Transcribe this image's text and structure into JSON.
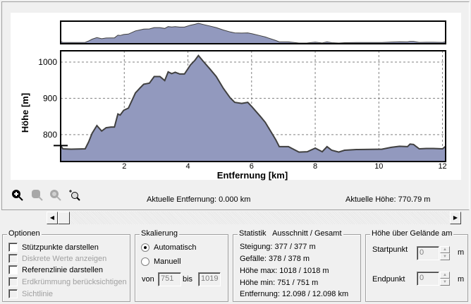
{
  "chart_data": {
    "type": "area",
    "xlabel": "Entfernung [km]",
    "ylabel": "Höhe [m]",
    "xlim": [
      0,
      12.098
    ],
    "ylim": [
      726,
      1031
    ],
    "xticks": [
      "2",
      "4",
      "6",
      "8",
      "10",
      "12"
    ],
    "yticks": [
      "800",
      "900",
      "1000"
    ],
    "grid": true,
    "fill_color": "#9299be",
    "line_color": "#404040",
    "reference_marker_elevation": 770,
    "x": [
      0,
      0.07,
      0.33,
      0.77,
      0.88,
      0.99,
      1.14,
      1.29,
      1.43,
      1.58,
      1.69,
      1.8,
      1.87,
      1.98,
      2.13,
      2.35,
      2.5,
      2.61,
      2.79,
      2.94,
      3.12,
      3.27,
      3.38,
      3.49,
      3.6,
      3.74,
      3.89,
      4.08,
      4.22,
      4.33,
      4.48,
      4.67,
      4.89,
      5.11,
      5.33,
      5.47,
      5.69,
      5.88,
      6.02,
      6.28,
      6.43,
      6.76,
      6.87,
      7.16,
      7.49,
      7.75,
      8.0,
      8.22,
      8.37,
      8.52,
      8.74,
      8.92,
      9.29,
      10.1,
      10.39,
      10.65,
      10.9,
      10.98,
      11.09,
      11.27,
      11.49,
      11.71,
      12.0,
      12.098
    ],
    "y": [
      770,
      761,
      760,
      761,
      780,
      804,
      825,
      810,
      819,
      821,
      821,
      857,
      854,
      867,
      873,
      915,
      929,
      939,
      942,
      960,
      960,
      949,
      973,
      968,
      972,
      967,
      967,
      992,
      1005,
      1018,
      1002,
      983,
      960,
      928,
      901,
      889,
      886,
      889,
      876,
      850,
      834,
      786,
      767,
      767,
      752,
      753,
      763,
      753,
      767,
      757,
      752,
      757,
      759,
      760,
      765,
      768,
      767,
      774,
      773,
      761,
      762,
      762,
      761,
      768
    ]
  },
  "toolbar": {
    "icons": [
      "zoom-in-icon",
      "zoom-previous-icon",
      "zoom-out-icon",
      "zoom-window-icon"
    ]
  },
  "status": {
    "distance": "Aktuelle Entfernung: 0.000 km",
    "elevation": "Aktuelle Höhe: 770.79 m"
  },
  "options": {
    "title": "Optionen",
    "items": [
      {
        "label": "Stützpunkte darstellen",
        "checked": false,
        "enabled": true
      },
      {
        "label": "Diskrete Werte anzeigen",
        "checked": false,
        "enabled": false
      },
      {
        "label": "Referenzlinie darstellen",
        "checked": false,
        "enabled": true
      },
      {
        "label": "Erdkrümmung berücksichtigen",
        "checked": false,
        "enabled": false
      },
      {
        "label": "Sichtlinie",
        "checked": false,
        "enabled": false
      }
    ]
  },
  "scaling": {
    "title": "Skalierung",
    "auto": "Automatisch",
    "manual": "Manuell",
    "selected": "Automatisch",
    "from_label": "von",
    "from": "751",
    "to_label": "bis",
    "to": "1019"
  },
  "stats": {
    "title": "Statistik   Ausschnitt / Gesamt",
    "lines": [
      "Steigung: 377 / 377 m",
      "Gefälle: 378 / 378 m",
      "Höhe max: 1018 / 1018 m",
      "Höhe min: 751 / 751 m",
      "Entfernung: 12.098 / 12.098 km"
    ]
  },
  "height": {
    "title": "Höhe über Gelände am",
    "start_label": "Startpunkt",
    "start": "0",
    "end_label": "Endpunkt",
    "end": "0",
    "unit": "m"
  }
}
